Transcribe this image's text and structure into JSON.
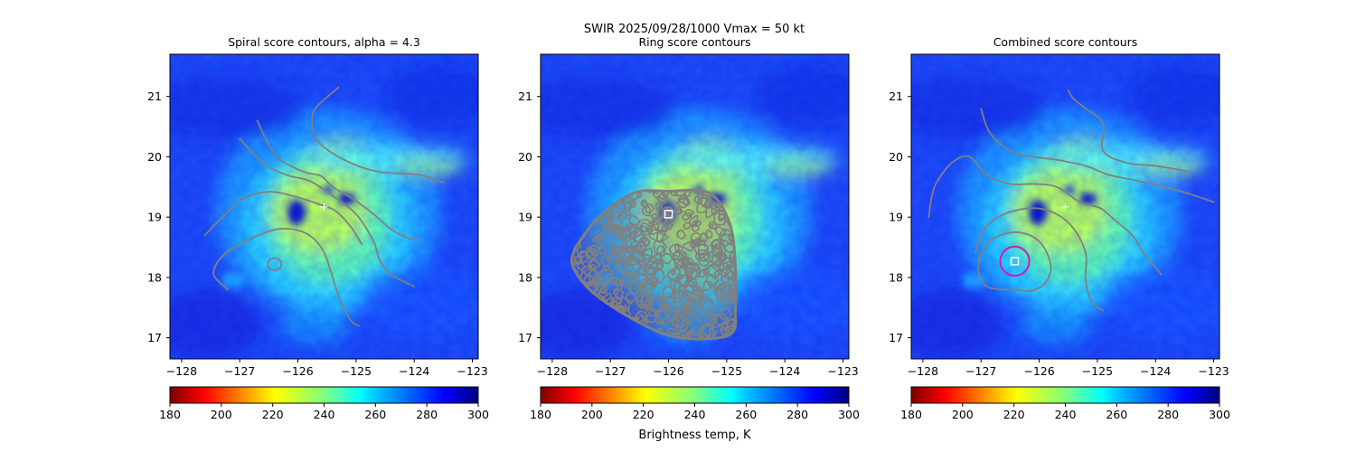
{
  "figure": {
    "suptitle_line1": "SWIR  2025/09/28/1000    Vmax = 50 kt",
    "colorbar_label": "Brightness temp, K"
  },
  "colorbar": {
    "colormap": "jet_r",
    "range": [
      180,
      300
    ],
    "ticks": [
      "180",
      "200",
      "220",
      "240",
      "260",
      "280",
      "300"
    ]
  },
  "colors": {
    "contour": "#808080",
    "marker": "#ffffff",
    "circle": "#cc1fae",
    "frame": "#000000"
  },
  "chart_data": [
    {
      "type": "heatmap",
      "title": "Spiral score contours, alpha =  4.3",
      "xlabel": "",
      "ylabel": "",
      "xlim": [
        -128.2,
        -122.9
      ],
      "ylim": [
        16.65,
        21.7
      ],
      "xticks": [
        "−128",
        "−127",
        "−126",
        "−125",
        "−124",
        "−123"
      ],
      "yticks": [
        "17",
        "18",
        "19",
        "20",
        "21"
      ],
      "center_cross": [
        -125.55,
        19.17
      ],
      "contours": [
        [
          [
            -125.3,
            21.15
          ],
          [
            -125.7,
            20.8
          ],
          [
            -125.75,
            20.5
          ],
          [
            -125.6,
            20.2
          ],
          [
            -125.1,
            19.9
          ],
          [
            -124.6,
            19.75
          ],
          [
            -123.9,
            19.7
          ],
          [
            -123.5,
            19.57
          ]
        ],
        [
          [
            -126.7,
            20.6
          ],
          [
            -126.5,
            20.2
          ],
          [
            -126.3,
            19.95
          ],
          [
            -125.9,
            19.75
          ],
          [
            -125.6,
            19.68
          ],
          [
            -125.4,
            19.5
          ],
          [
            -125.05,
            19.3
          ],
          [
            -124.7,
            19.05
          ],
          [
            -124.4,
            18.8
          ],
          [
            -124.1,
            18.65
          ],
          [
            -123.9,
            18.63
          ]
        ],
        [
          [
            -127.6,
            18.7
          ],
          [
            -127.3,
            19.0
          ],
          [
            -126.95,
            19.3
          ],
          [
            -126.5,
            19.42
          ],
          [
            -126.0,
            19.33
          ],
          [
            -125.6,
            19.2
          ],
          [
            -125.35,
            19.1
          ],
          [
            -125.1,
            18.85
          ],
          [
            -124.9,
            18.55
          ]
        ],
        [
          [
            -127.2,
            17.8
          ],
          [
            -127.45,
            18.05
          ],
          [
            -127.3,
            18.35
          ],
          [
            -126.9,
            18.6
          ],
          [
            -126.35,
            18.8
          ],
          [
            -125.9,
            18.75
          ],
          [
            -125.6,
            18.5
          ],
          [
            -125.45,
            18.15
          ],
          [
            -125.3,
            17.7
          ],
          [
            -125.1,
            17.3
          ],
          [
            -124.95,
            17.2
          ]
        ],
        [
          [
            -127.0,
            20.3
          ],
          [
            -126.6,
            19.9
          ],
          [
            -126.2,
            19.7
          ],
          [
            -125.8,
            19.6
          ],
          [
            -125.4,
            19.35
          ],
          [
            -125.0,
            19.05
          ],
          [
            -124.7,
            18.6
          ],
          [
            -124.6,
            18.3
          ],
          [
            -124.4,
            18.05
          ],
          [
            -124.0,
            17.85
          ]
        ]
      ],
      "loops": [
        {
          "center": [
            -126.4,
            18.22
          ],
          "r": [
            0.12,
            0.1
          ]
        }
      ]
    },
    {
      "type": "heatmap",
      "title": "Ring score contours",
      "xlabel": "",
      "ylabel": "",
      "xlim": [
        -128.2,
        -122.9
      ],
      "ylim": [
        16.65,
        21.7
      ],
      "xticks": [
        "−128",
        "−127",
        "−126",
        "−125",
        "−124",
        "−123"
      ],
      "yticks": [
        "17",
        "18",
        "19",
        "20",
        "21"
      ],
      "center_square": [
        -126.0,
        19.05
      ],
      "ring_region_outline": [
        [
          -127.6,
          18.5
        ],
        [
          -127.2,
          19.0
        ],
        [
          -126.6,
          19.4
        ],
        [
          -126.0,
          19.43
        ],
        [
          -125.3,
          19.4
        ],
        [
          -124.95,
          18.9
        ],
        [
          -124.85,
          18.2
        ],
        [
          -124.85,
          17.5
        ],
        [
          -124.95,
          17.05
        ],
        [
          -125.8,
          17.0
        ],
        [
          -126.5,
          17.25
        ],
        [
          -127.3,
          17.75
        ],
        [
          -127.65,
          18.2
        ]
      ]
    },
    {
      "type": "heatmap",
      "title": "Combined score contours",
      "xlabel": "",
      "ylabel": "",
      "xlim": [
        -128.2,
        -122.9
      ],
      "ylim": [
        16.65,
        21.7
      ],
      "xticks": [
        "−128",
        "−127",
        "−126",
        "−125",
        "−124",
        "−123"
      ],
      "yticks": [
        "17",
        "18",
        "19",
        "20",
        "21"
      ],
      "center_cross": [
        -125.55,
        19.17
      ],
      "center_square": [
        -126.42,
        18.27
      ],
      "circle": {
        "center": [
          -126.42,
          18.27
        ],
        "radius_deg": 0.25
      },
      "contours": [
        [
          [
            -125.5,
            21.1
          ],
          [
            -125.4,
            20.95
          ],
          [
            -125.2,
            20.8
          ],
          [
            -124.9,
            20.55
          ],
          [
            -124.9,
            20.1
          ],
          [
            -124.5,
            19.9
          ],
          [
            -124.0,
            19.85
          ],
          [
            -123.4,
            19.75
          ]
        ],
        [
          [
            -127.0,
            20.8
          ],
          [
            -126.85,
            20.4
          ],
          [
            -126.5,
            20.1
          ],
          [
            -126.1,
            20.0
          ],
          [
            -125.7,
            19.95
          ],
          [
            -125.2,
            19.85
          ],
          [
            -124.8,
            19.7
          ],
          [
            -124.3,
            19.6
          ],
          [
            -123.85,
            19.5
          ],
          [
            -123.4,
            19.38
          ],
          [
            -123.0,
            19.25
          ]
        ],
        [
          [
            -127.9,
            19.0
          ],
          [
            -127.8,
            19.5
          ],
          [
            -127.5,
            19.9
          ],
          [
            -127.2,
            20.0
          ],
          [
            -126.9,
            19.7
          ],
          [
            -126.5,
            19.55
          ],
          [
            -126.1,
            19.55
          ],
          [
            -125.7,
            19.5
          ],
          [
            -125.3,
            19.25
          ],
          [
            -124.95,
            19.15
          ],
          [
            -124.7,
            18.95
          ],
          [
            -124.4,
            18.7
          ],
          [
            -124.2,
            18.4
          ],
          [
            -123.9,
            18.05
          ]
        ],
        [
          [
            -127.1,
            18.4
          ],
          [
            -126.95,
            18.8
          ],
          [
            -126.6,
            19.05
          ],
          [
            -126.1,
            19.15
          ],
          [
            -125.7,
            19.05
          ],
          [
            -125.4,
            18.8
          ],
          [
            -125.2,
            18.4
          ],
          [
            -125.2,
            17.95
          ],
          [
            -125.1,
            17.6
          ],
          [
            -124.9,
            17.45
          ]
        ],
        [
          [
            -126.45,
            17.8
          ],
          [
            -126.9,
            17.85
          ],
          [
            -127.05,
            18.2
          ],
          [
            -126.85,
            18.6
          ],
          [
            -126.4,
            18.75
          ],
          [
            -126.0,
            18.6
          ],
          [
            -125.8,
            18.2
          ],
          [
            -125.9,
            17.9
          ],
          [
            -126.15,
            17.78
          ],
          [
            -126.45,
            17.8
          ]
        ]
      ]
    }
  ]
}
